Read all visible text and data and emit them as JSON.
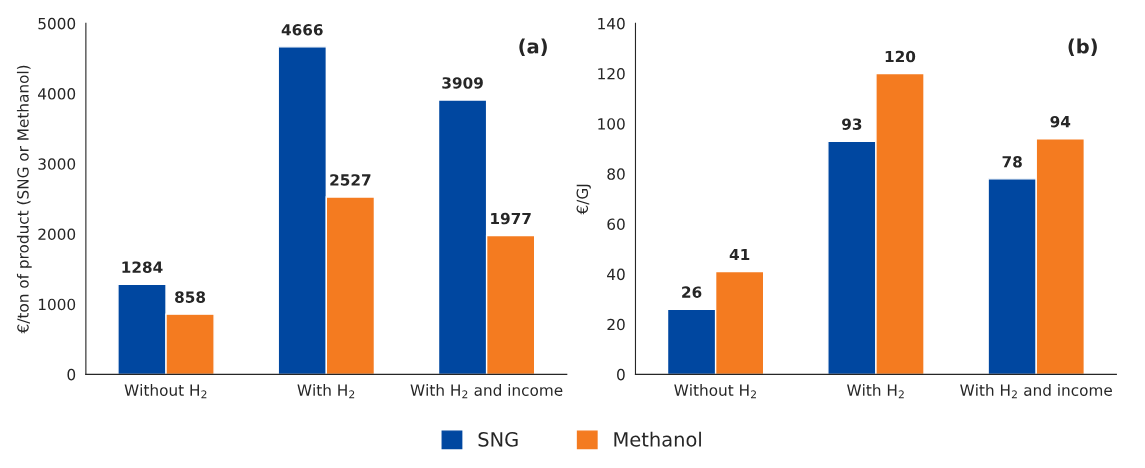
{
  "chart_data": [
    {
      "type": "bar",
      "categories": [
        "Without H$_{2}$",
        "With H$_{2}$",
        "With H$_{2}$ and income"
      ],
      "ylabel": "€/ton of product (SNG or Methanol)",
      "ylim": [
        0,
        5000
      ],
      "yticks": [
        0,
        1000,
        2000,
        3000,
        4000,
        5000
      ],
      "annotations": [
        "(a)"
      ],
      "data_labels": true,
      "grid": false,
      "legend": "bottom",
      "series": [
        {
          "name": "SNG",
          "color": "#0047a0",
          "values": [
            1284,
            4666,
            3909
          ]
        },
        {
          "name": "Methanol",
          "color": "#f47b20",
          "values": [
            858,
            2527,
            1977
          ]
        }
      ]
    },
    {
      "type": "bar",
      "categories": [
        "Without H$_{2}$",
        "With H$_{2}$",
        "With H$_{2}$ and income"
      ],
      "ylabel": "€/GJ",
      "ylim": [
        0,
        140
      ],
      "yticks": [
        0,
        20,
        40,
        60,
        80,
        100,
        120,
        140
      ],
      "annotations": [
        "(b)"
      ],
      "data_labels": true,
      "grid": false,
      "series": [
        {
          "color": "#0047a0",
          "values": [
            26,
            93,
            78
          ]
        },
        {
          "color": "#f47b20",
          "values": [
            41,
            120,
            94
          ]
        }
      ]
    }
  ]
}
